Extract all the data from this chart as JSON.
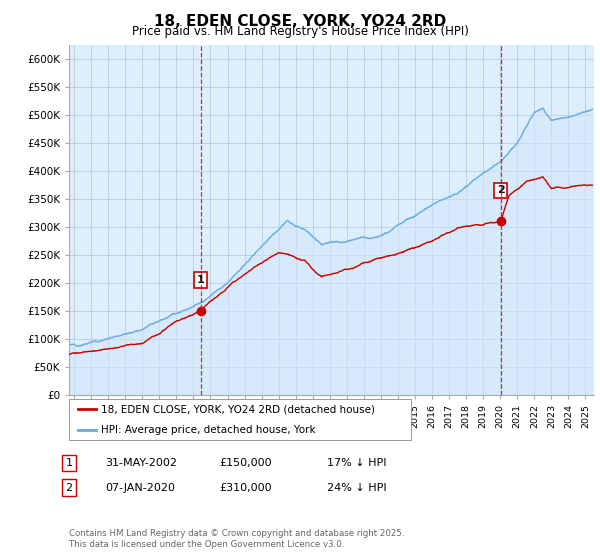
{
  "title": "18, EDEN CLOSE, YORK, YO24 2RD",
  "subtitle": "Price paid vs. HM Land Registry's House Price Index (HPI)",
  "ylabel_ticks": [
    "£0",
    "£50K",
    "£100K",
    "£150K",
    "£200K",
    "£250K",
    "£300K",
    "£350K",
    "£400K",
    "£450K",
    "£500K",
    "£550K",
    "£600K"
  ],
  "ytick_vals": [
    0,
    50000,
    100000,
    150000,
    200000,
    250000,
    300000,
    350000,
    400000,
    450000,
    500000,
    550000,
    600000
  ],
  "ylim": [
    0,
    625000
  ],
  "xlim_start": 1994.7,
  "xlim_end": 2025.5,
  "hpi_color": "#6aabdc",
  "hpi_fill_color": "#d0e8f8",
  "price_color": "#cc0000",
  "vline_color": "#cc0000",
  "marker1_date": 2002.42,
  "marker2_date": 2020.03,
  "marker1_price": 150000,
  "marker2_price": 310000,
  "legend_label1": "18, EDEN CLOSE, YORK, YO24 2RD (detached house)",
  "legend_label2": "HPI: Average price, detached house, York",
  "table_row1_label": "1",
  "table_row1_date": "31-MAY-2002",
  "table_row1_price": "£150,000",
  "table_row1_note": "17% ↓ HPI",
  "table_row2_label": "2",
  "table_row2_date": "07-JAN-2020",
  "table_row2_price": "£310,000",
  "table_row2_note": "24% ↓ HPI",
  "footer": "Contains HM Land Registry data © Crown copyright and database right 2025.\nThis data is licensed under the Open Government Licence v3.0.",
  "background_color": "#ffffff",
  "chart_bg_color": "#ddeeff",
  "grid_color": "#bbccdd"
}
